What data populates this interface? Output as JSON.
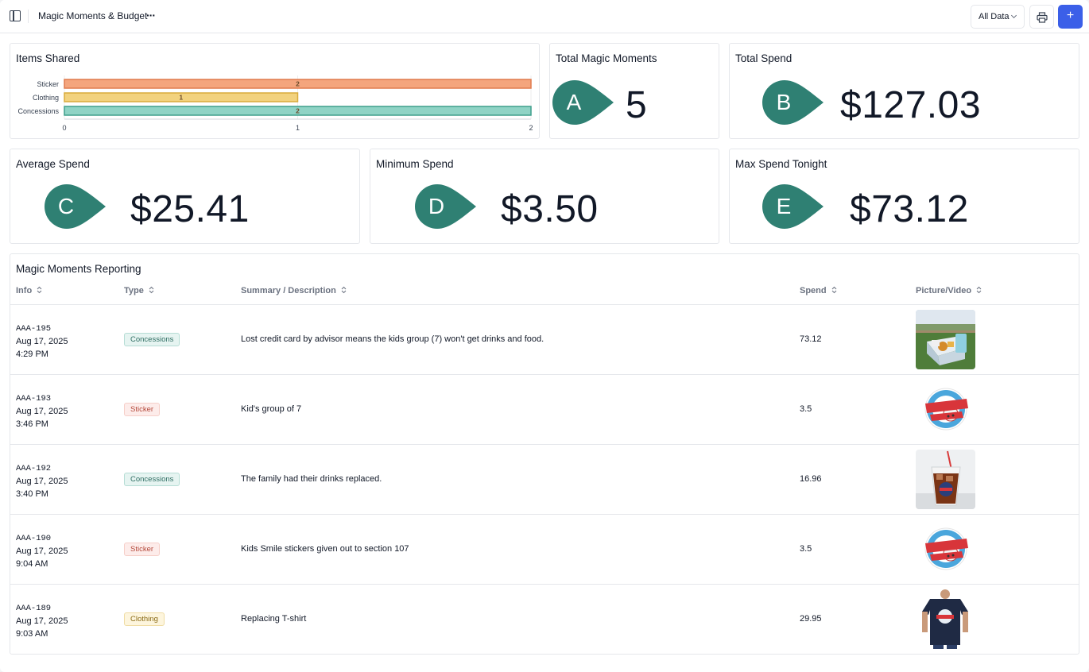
{
  "header": {
    "title": "Magic Moments & Budget",
    "more_label": "···",
    "filter_label": "All Data",
    "add_label": "+"
  },
  "chart_card": {
    "title": "Items Shared"
  },
  "chart_data": {
    "type": "bar",
    "orientation": "horizontal",
    "categories": [
      "Sticker",
      "Clothing",
      "Concessions"
    ],
    "values": [
      2,
      1,
      2
    ],
    "data_labels": [
      "2",
      "1",
      "2"
    ],
    "colors": [
      "#f4a57d",
      "#f2d27e",
      "#8fd3c5"
    ],
    "border_colors": [
      "#e07b4f",
      "#d9ab3c",
      "#3f9f8c"
    ],
    "xlim": [
      0,
      2
    ],
    "x_ticks": [
      "0",
      "1",
      "2"
    ],
    "title": "Items Shared"
  },
  "metrics": {
    "total_moments": {
      "title": "Total Magic Moments",
      "marker": "A",
      "value": "5"
    },
    "total_spend": {
      "title": "Total Spend",
      "marker": "B",
      "value": "$127.03"
    },
    "average_spend": {
      "title": "Average Spend",
      "marker": "C",
      "value": "$25.41"
    },
    "minimum_spend": {
      "title": "Minimum Spend",
      "marker": "D",
      "value": "$3.50"
    },
    "max_spend": {
      "title": "Max Spend Tonight",
      "marker": "E",
      "value": "$73.12"
    },
    "marker_color": "#2f8073"
  },
  "table": {
    "title": "Magic Moments Reporting",
    "columns": [
      "Info",
      "Type",
      "Summary / Description",
      "Spend",
      "Picture/Video"
    ],
    "rows": [
      {
        "id": "AAA-195",
        "date": "Aug 17, 2025",
        "time": "4:29 PM",
        "type": "Concessions",
        "desc": "Lost credit card by advisor means the kids group (7) won't get drinks and food.",
        "spend": "73.12",
        "picture": "food-box-on-field"
      },
      {
        "id": "AAA-193",
        "date": "Aug 17, 2025",
        "time": "3:46 PM",
        "type": "Sticker",
        "desc": "Kid's group of 7",
        "spend": "3.5",
        "picture": "baseball-star-sticker"
      },
      {
        "id": "AAA-192",
        "date": "Aug 17, 2025",
        "time": "3:40 PM",
        "type": "Concessions",
        "desc": "The family had their drinks replaced.",
        "spend": "16.96",
        "picture": "iced-drink-cup"
      },
      {
        "id": "AAA-190",
        "date": "Aug 17, 2025",
        "time": "9:04 AM",
        "type": "Sticker",
        "desc": "Kids Smile stickers given out to section 107",
        "spend": "3.5",
        "picture": "baseball-star-sticker"
      },
      {
        "id": "AAA-189",
        "date": "Aug 17, 2025",
        "time": "9:03 AM",
        "type": "Clothing",
        "desc": "Replacing T-shirt",
        "spend": "29.95",
        "picture": "navy-t-shirt"
      }
    ]
  }
}
